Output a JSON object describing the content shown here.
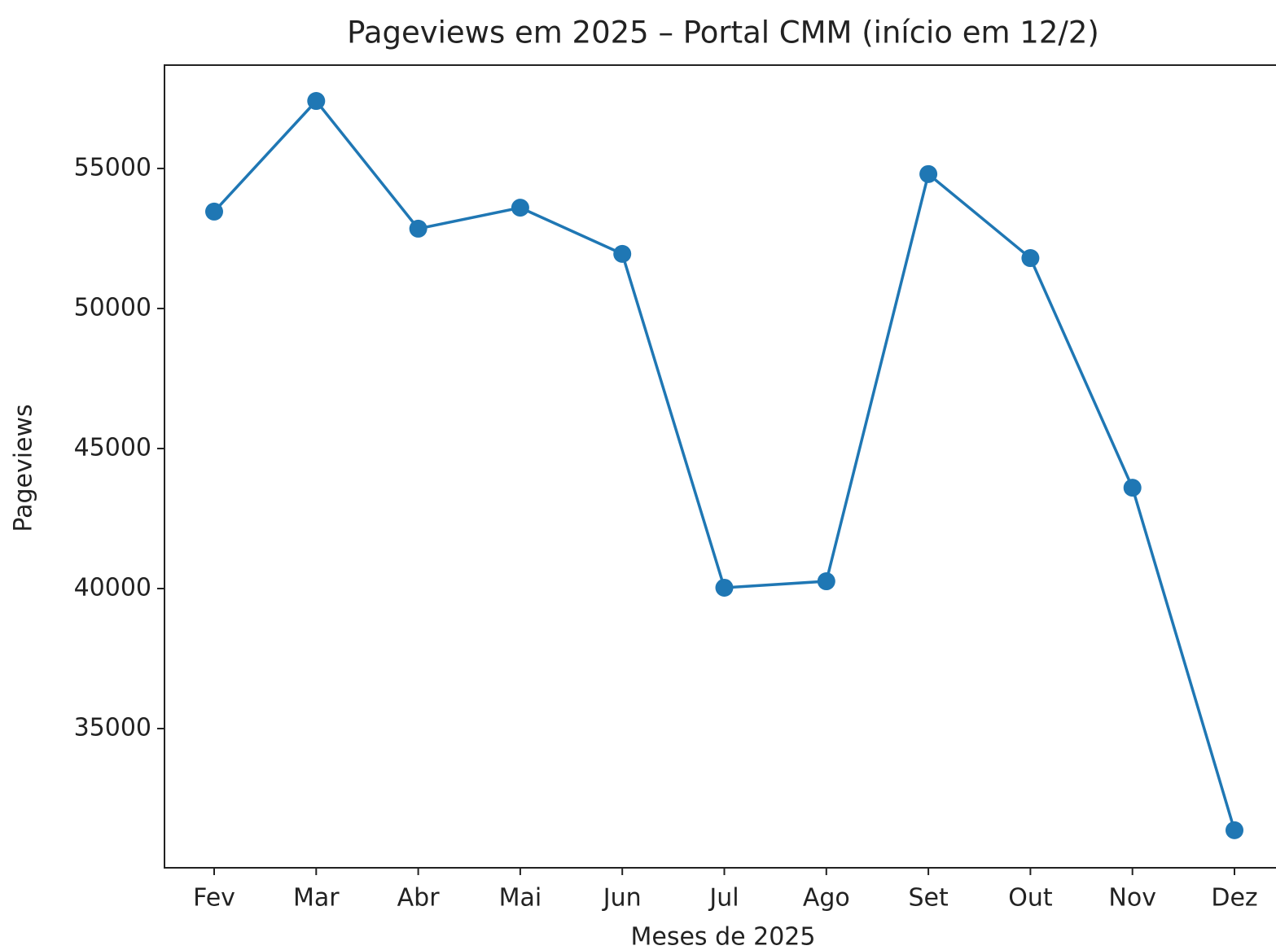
{
  "chart_data": {
    "type": "line",
    "title": "Pageviews em 2025 – Portal CMM (início em 12/2)",
    "x_label": "Meses de 2025",
    "y_label": "Pageviews",
    "categories": [
      "Fev",
      "Mar",
      "Abr",
      "Mai",
      "Jun",
      "Jul",
      "Ago",
      "Set",
      "Out",
      "Nov",
      "Dez"
    ],
    "series": [
      {
        "name": "Pageviews",
        "color": "#1f77b4",
        "values": [
          53460,
          57410,
          52850,
          53600,
          51950,
          40030,
          40260,
          54800,
          51800,
          43600,
          31370
        ]
      }
    ],
    "ylim": [
      30030,
      58690
    ],
    "yticks": [
      35000,
      40000,
      45000,
      50000,
      55000
    ],
    "grid": false
  }
}
